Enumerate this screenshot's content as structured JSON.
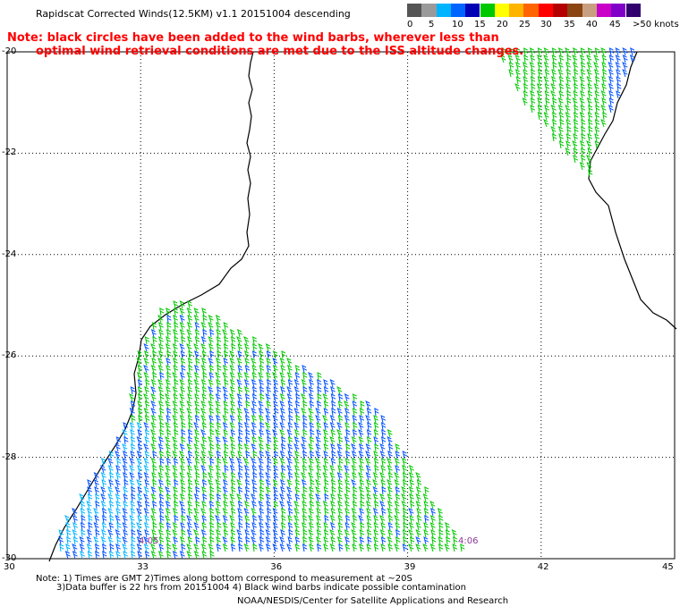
{
  "header": {
    "title": "Rapidscat Corrected Winds(12.5KM) v1.1 20151004 descending",
    "note_line1": "Note: black circles have been added to the wind barbs, wherever less than",
    "note_line2": "optimal wind retrieval conditions are met due to the ISS altitude changes."
  },
  "legend": {
    "colors": [
      "#555555",
      "#9a9a9a",
      "#00b4ff",
      "#0064ff",
      "#0000b4",
      "#00c800",
      "#ffff00",
      "#ffb400",
      "#ff6400",
      "#ff0000",
      "#b40000",
      "#8b4513",
      "#c8a080",
      "#c800c8",
      "#8000c8",
      "#32006e"
    ],
    "labels": [
      "0",
      "5",
      "10",
      "15",
      "20",
      "25",
      "30",
      "35",
      "40",
      "45",
      ">50 knots"
    ]
  },
  "map": {
    "lat_labels": [
      "-20",
      "-22",
      "-24",
      "-26",
      "-28",
      "-30"
    ],
    "lon_labels": [
      "30",
      "33",
      "36",
      "39",
      "42",
      "45"
    ],
    "time_labels": [
      "4:05",
      "4:06"
    ]
  },
  "footer": {
    "note_line1": "Note: 1) Times are GMT 2)Times along bottom correspond to measurement at ~20S",
    "note_line2": "3)Data buffer is 22 hrs from 20151004 4) Black wind barbs indicate possible contamination",
    "credit": "NOAA/NESDIS/Center for Satellite Applications and Research"
  }
}
